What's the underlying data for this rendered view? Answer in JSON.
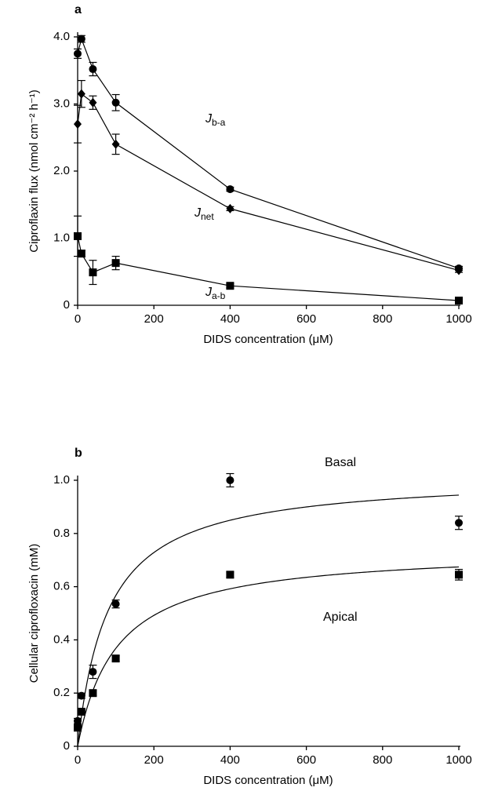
{
  "chart_data": [
    {
      "type": "line",
      "panel": "a",
      "x_label": "DIDS concentration (μM)",
      "y_label": "Ciproflaxin flux (nmol cm⁻² h⁻¹)",
      "xlim": [
        0,
        1000
      ],
      "xticks": [
        0,
        200,
        400,
        600,
        800,
        1000
      ],
      "ylim": [
        0,
        4
      ],
      "yticks": [
        0,
        {
          "value": 1,
          "label": "1.0"
        },
        {
          "value": 2,
          "label": "2.0"
        },
        {
          "value": 3,
          "label": "3.0"
        },
        {
          "value": 4,
          "label": "4.0"
        }
      ],
      "x": [
        0,
        10,
        40,
        100,
        400,
        1000
      ],
      "series": [
        {
          "label": {
            "symbol": "J",
            "subscript": "b-a"
          },
          "marker": "circle",
          "color": "#000000",
          "values": [
            3.75,
            3.97,
            3.52,
            3.02,
            1.73,
            0.55
          ],
          "errors": [
            0.07,
            0.05,
            0.1,
            0.12,
            0.03,
            0.03
          ]
        },
        {
          "label": {
            "symbol": "J",
            "subscript": "net"
          },
          "marker": "diamond",
          "color": "#000000",
          "values": [
            2.7,
            3.15,
            3.02,
            2.4,
            1.44,
            0.52
          ],
          "errors": [
            0.28,
            0.2,
            0.1,
            0.15,
            0.03,
            0.03
          ]
        },
        {
          "label": {
            "symbol": "J",
            "subscript": "a-b"
          },
          "marker": "square",
          "color": "#000000",
          "values": [
            1.03,
            0.77,
            0.49,
            0.63,
            0.29,
            0.07
          ],
          "errors": [
            0.3,
            0.05,
            0.18,
            0.1,
            0.03,
            0.02
          ]
        }
      ]
    },
    {
      "type": "scatter",
      "panel": "b",
      "trendline": true,
      "x_label": "DIDS concentration (μM)",
      "y_label": "Cellular ciprofloxacin (mM)",
      "xlim": [
        0,
        1000
      ],
      "xticks": [
        0,
        200,
        400,
        600,
        800,
        1000
      ],
      "ylim": [
        0,
        1
      ],
      "yticks": [
        0,
        0.2,
        0.4,
        0.6,
        0.8,
        {
          "value": 1,
          "label": "1.0"
        }
      ],
      "x": [
        0,
        10,
        40,
        100,
        400,
        1000
      ],
      "series": [
        {
          "label": {
            "symbol": "Basal"
          },
          "marker": "circle",
          "color": "#000000",
          "values": [
            0.095,
            0.19,
            0.28,
            0.535,
            1.0,
            0.84
          ],
          "errors": [
            0.01,
            0.01,
            0.025,
            0.015,
            0.025,
            0.025
          ]
        },
        {
          "label": {
            "symbol": "Apical"
          },
          "marker": "square",
          "color": "#000000",
          "values": [
            0.07,
            0.13,
            0.2,
            0.33,
            0.645,
            0.645
          ],
          "errors": [
            0.01,
            0.01,
            0.01,
            0.01,
            0.01,
            0.02
          ]
        }
      ]
    }
  ]
}
